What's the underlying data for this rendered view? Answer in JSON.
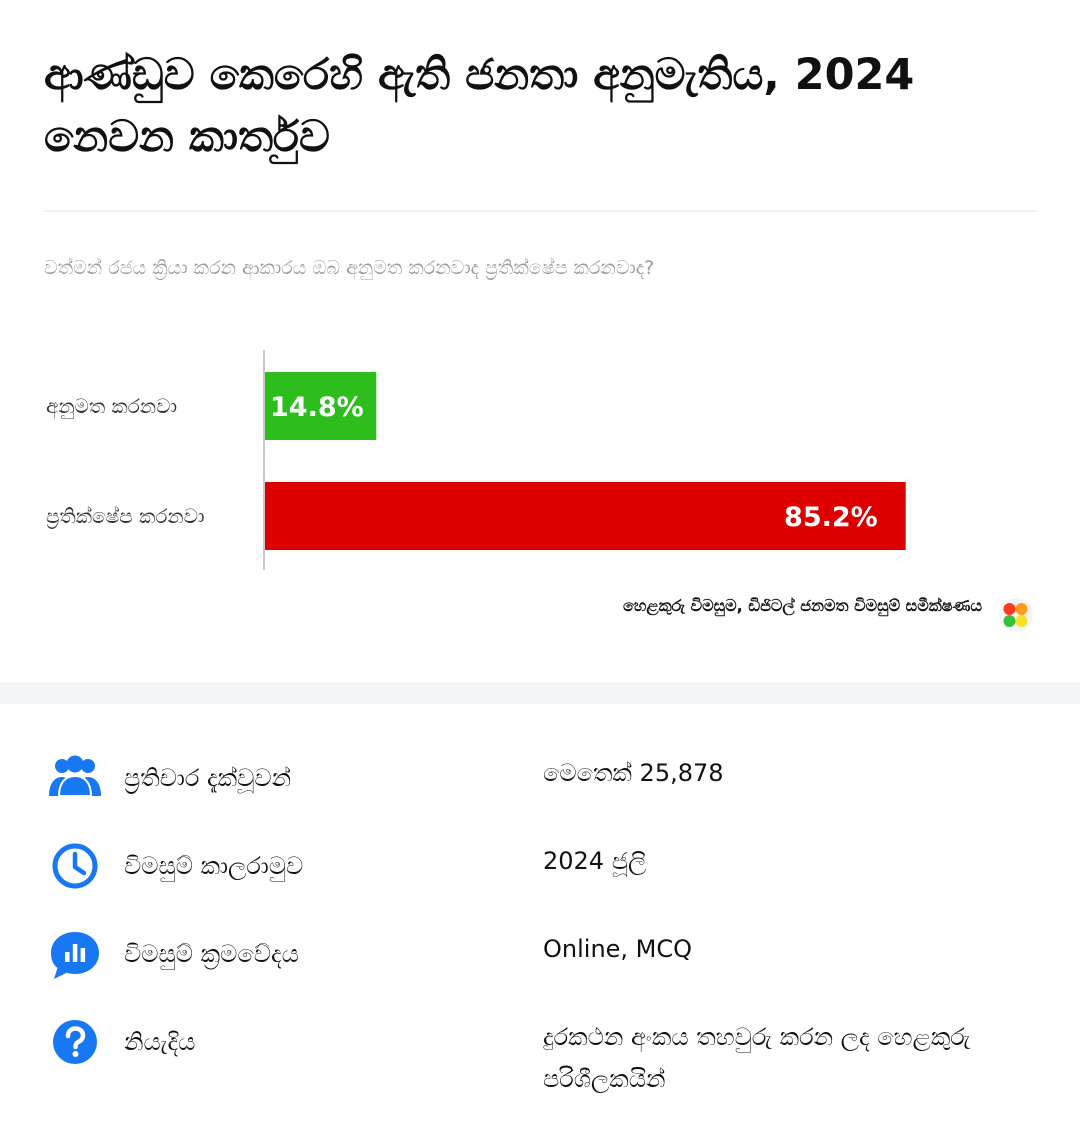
{
  "title": "ආණ්ඩුව කෙරෙහි ඇති ජනතා අනුමැතිය, 2024 නෙවන කාර්තුව",
  "question": "වත්මන් රජය ක්‍රියා කරන ආකාරය ඔබ අනුමත කරනවාද ප්‍රතික්ෂේප කරනවාද?",
  "chart_data": {
    "type": "bar",
    "orientation": "horizontal",
    "title": "ආණ්ඩුව කෙරෙහි ඇති ජනතා අනුමැතිය, 2024 නෙවන කාර්තුව",
    "subtitle": "වත්මන් රජය ක්‍රියා කරන ආකාරය ඔබ අනුමත කරනවාද ප්‍රතික්ෂේප කරනවාද?",
    "categories": [
      "අනුමත කරනවා",
      "ප්‍රතික්ෂේප කරනවා"
    ],
    "values": [
      14.8,
      85.2
    ],
    "value_labels": [
      "14.8%",
      "85.2%"
    ],
    "colors": [
      "#2dbe1d",
      "#dc0000"
    ],
    "xlim": [
      0,
      100
    ],
    "grid": false,
    "legend": "none"
  },
  "source": "හෙළකුරු විමසුම, ඩිජිටල් ජනමත විමසුම් සමීක්ෂණය",
  "info": [
    {
      "icon": "people-icon",
      "label": "ප්‍රතිචාර දැක්වූවන්",
      "value": "මෙතෙක් 25,878"
    },
    {
      "icon": "clock-icon",
      "label": "විමසුම් කාලරාමුව",
      "value": "2024 ජූලි"
    },
    {
      "icon": "chart-chat-icon",
      "label": "විමසුම් ක්‍රමවේදය",
      "value": "Online, MCQ"
    },
    {
      "icon": "question-icon",
      "label": "නියැදිය",
      "value": "දුරකථන අංකය තහවුරු කරන ලද හෙළකුරු පරිශීලකයින්"
    }
  ],
  "colors": {
    "accent_blue": "#1877f2",
    "approve_green": "#2dbe1d",
    "reject_red": "#dc0000"
  }
}
